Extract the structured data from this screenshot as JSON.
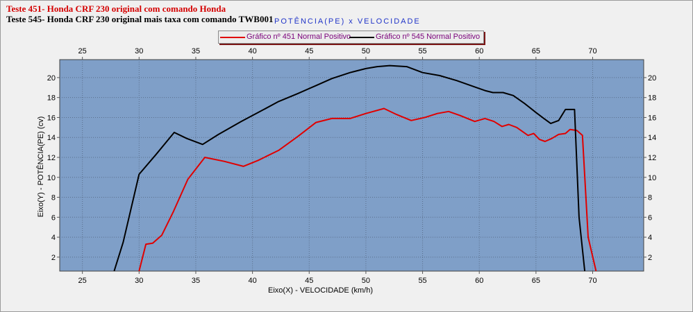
{
  "header": {
    "title_line1": "Teste 451- Honda CRF 230 original com comando Honda",
    "title_line2": "Teste 545- Honda CRF 230 original mais taxa com comando TWB001",
    "chart_title": "POTÊNCIA(PE) x VELOCIDADE"
  },
  "colors": {
    "series1": "#e00000",
    "series2": "#000000",
    "plot_bg": "#7f9fc8",
    "frame_bg": "#f0f0f0"
  },
  "chart_data": {
    "type": "line",
    "title": "POTÊNCIA(PE) x VELOCIDADE",
    "xlabel": "Eixo(X) - VELOCIDADE (km/h)",
    "ylabel": "Eixo(Y) - POTÊNCIA(PE) (cv)",
    "xlim": [
      23,
      74.5
    ],
    "ylim": [
      0.6,
      21.8
    ],
    "xticks": [
      25,
      30,
      35,
      40,
      45,
      50,
      55,
      60,
      65,
      70
    ],
    "yticks": [
      2,
      4,
      6,
      8,
      10,
      12,
      14,
      16,
      18,
      20
    ],
    "grid": true,
    "legend_position": "top-center",
    "series": [
      {
        "name": "Gráfico nº 451 Normal Positivo",
        "color": "#e00000",
        "x": [
          30.0,
          30.6,
          31.2,
          32.0,
          33.0,
          34.3,
          35.8,
          37.5,
          39.2,
          40.5,
          42.3,
          44.0,
          45.6,
          47.0,
          48.6,
          50.0,
          51.6,
          52.7,
          54.0,
          55.2,
          56.3,
          57.3,
          58.3,
          59.6,
          60.5,
          61.3,
          62.0,
          62.6,
          63.3,
          64.3,
          64.8,
          65.3,
          65.8,
          66.4,
          67.0,
          67.6,
          68.0,
          68.6,
          69.1,
          69.6,
          70.3
        ],
        "y": [
          0.6,
          3.3,
          3.4,
          4.2,
          6.5,
          9.8,
          12.0,
          11.6,
          11.1,
          11.7,
          12.7,
          14.1,
          15.5,
          15.9,
          15.9,
          16.4,
          16.9,
          16.3,
          15.7,
          16.0,
          16.4,
          16.6,
          16.2,
          15.6,
          15.9,
          15.6,
          15.1,
          15.3,
          15.0,
          14.2,
          14.4,
          13.8,
          13.6,
          13.9,
          14.3,
          14.4,
          14.8,
          14.7,
          14.2,
          4.0,
          0.6
        ]
      },
      {
        "name": "Gráfico nº 545 Normal Positivo",
        "color": "#000000",
        "x": [
          27.8,
          28.6,
          30.0,
          31.5,
          33.1,
          34.2,
          35.6,
          37.0,
          39.0,
          41.0,
          42.3,
          44.0,
          45.6,
          47.0,
          48.6,
          50.0,
          51.0,
          52.1,
          53.6,
          55.0,
          56.5,
          58.0,
          59.5,
          60.5,
          61.2,
          62.1,
          63.0,
          64.0,
          65.0,
          65.7,
          66.3,
          67.0,
          67.6,
          68.4,
          68.8,
          69.3
        ],
        "y": [
          0.6,
          3.5,
          10.3,
          12.3,
          14.5,
          13.9,
          13.3,
          14.3,
          15.6,
          16.8,
          17.6,
          18.4,
          19.2,
          19.9,
          20.5,
          20.9,
          21.1,
          21.2,
          21.1,
          20.5,
          20.2,
          19.7,
          19.1,
          18.7,
          18.5,
          18.5,
          18.2,
          17.4,
          16.5,
          15.9,
          15.4,
          15.7,
          16.8,
          16.8,
          6.0,
          0.6
        ]
      }
    ]
  }
}
